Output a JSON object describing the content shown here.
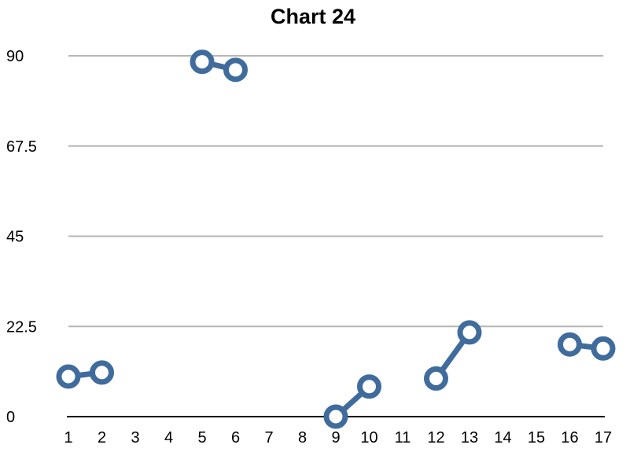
{
  "chart_data": {
    "type": "line",
    "title": "Chart 24",
    "xlabel": "",
    "ylabel": "",
    "categories": [
      "1",
      "2",
      "3",
      "4",
      "5",
      "6",
      "7",
      "8",
      "9",
      "10",
      "11",
      "12",
      "13",
      "14",
      "15",
      "16",
      "17"
    ],
    "series": [
      {
        "values": [
          10,
          11,
          null,
          null,
          88.5,
          86.5,
          null,
          null,
          0,
          7.5,
          null,
          9.5,
          21,
          null,
          null,
          18,
          17
        ]
      }
    ],
    "yticks": [
      "0",
      "22.5",
      "45",
      "67.5",
      "90"
    ],
    "ylim": [
      0,
      90
    ],
    "grid": true,
    "legend": "none",
    "colors": {
      "series": "#3f6c9c",
      "grid": "#b5b5b5",
      "axis": "#000000",
      "marker_fill": "#ffffff"
    }
  }
}
